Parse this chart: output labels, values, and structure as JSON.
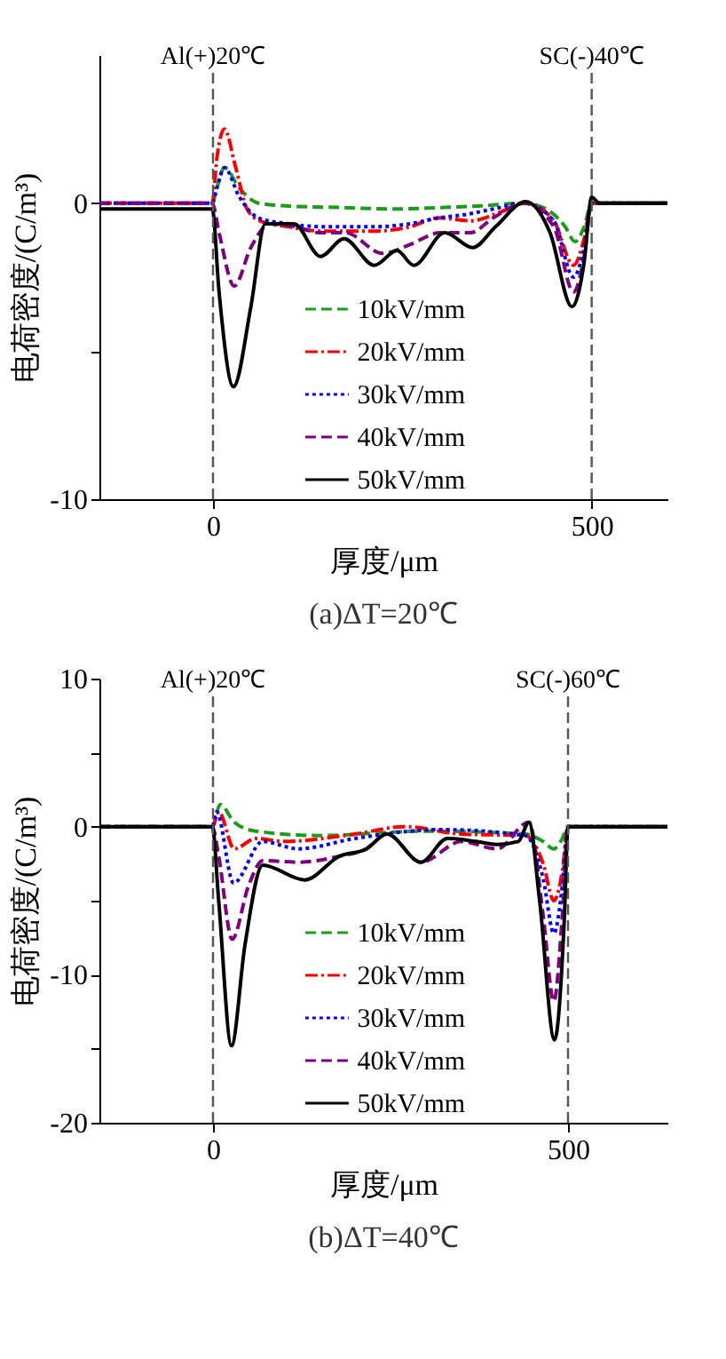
{
  "chart_data": [
    {
      "type": "line",
      "title": "(a)ΔT=20℃",
      "xlabel": "厚度/μm",
      "ylabel": "电荷密度/(C/m³)",
      "xlim": [
        -150,
        600
      ],
      "ylim": [
        -10,
        5
      ],
      "xticks": [
        0,
        500
      ],
      "yticks": [
        0,
        -10,
        {
          "value": -5,
          "label": null
        }
      ],
      "legend": "bottom",
      "grid": false,
      "ref_lines": [
        {
          "axis": "x",
          "value": 0,
          "label": "Al(+)20℃",
          "color": "#555555",
          "line_style": "dashed"
        },
        {
          "axis": "x",
          "value": 500,
          "label": "SC(-)40℃",
          "color": "#555555",
          "line_style": "dashed"
        }
      ],
      "series": [
        {
          "name": "10kV/mm",
          "color": "#1a9e1a",
          "line_style": "dashed",
          "x": [
            -150,
            -1,
            5,
            15,
            35,
            60,
            100,
            170,
            240,
            300,
            350,
            410,
            440,
            465,
            478,
            490,
            500,
            600
          ],
          "values": [
            0,
            0,
            0.5,
            1.2,
            0.5,
            0,
            -0.1,
            -0.15,
            -0.2,
            -0.15,
            -0.1,
            0,
            -0.2,
            -0.8,
            -1.3,
            -0.8,
            0,
            0
          ]
        },
        {
          "name": "20kV/mm",
          "color": "#ff0000",
          "line_style": "dashdot",
          "x": [
            -150,
            -1,
            5,
            15,
            30,
            45,
            62,
            100,
            145,
            210,
            260,
            298,
            340,
            380,
            413,
            450,
            476,
            490,
            500,
            600
          ],
          "values": [
            0,
            0,
            1.5,
            2.5,
            1.2,
            -0.2,
            -0.6,
            -0.8,
            -0.95,
            -0.95,
            -0.8,
            -0.5,
            -0.6,
            -0.3,
            0,
            -0.6,
            -2.1,
            -1.2,
            0,
            0
          ]
        },
        {
          "name": "30kV/mm",
          "color": "#0000ff",
          "line_style": "dotted",
          "x": [
            -150,
            -1,
            5,
            15,
            35,
            60,
            100,
            145,
            210,
            260,
            298,
            330,
            370,
            410,
            450,
            476,
            490,
            500,
            600
          ],
          "values": [
            0,
            0,
            0.5,
            1.2,
            0.2,
            -0.5,
            -0.7,
            -0.8,
            -0.8,
            -0.7,
            -0.5,
            -0.4,
            -0.2,
            0,
            -0.6,
            -2.5,
            -1.5,
            0,
            0
          ]
        },
        {
          "name": "40kV/mm",
          "color": "#800080",
          "line_style": "dashed",
          "x": [
            -150,
            -1,
            8,
            28,
            50,
            75,
            110,
            140,
            175,
            224,
            260,
            300,
            340,
            370,
            410,
            450,
            476,
            490,
            500,
            600
          ],
          "values": [
            0,
            0,
            -1.0,
            -2.8,
            -1.5,
            -0.7,
            -0.8,
            -1.0,
            -1.0,
            -1.7,
            -1.4,
            -1.0,
            -1.0,
            -0.5,
            0,
            -0.8,
            -3.0,
            -1.8,
            0,
            0
          ]
        },
        {
          "name": "50kV/mm",
          "color": "#000000",
          "line_style": "solid",
          "x": [
            -150,
            -1,
            8,
            27,
            50,
            69,
            107,
            142,
            173,
            213,
            243,
            265,
            306,
            343,
            373,
            413,
            445,
            474,
            490,
            500,
            510,
            600
          ],
          "values": [
            -0.2,
            -0.2,
            -3.0,
            -6.2,
            -3.5,
            -0.7,
            -0.7,
            -1.8,
            -1.2,
            -2.1,
            -1.6,
            -2.1,
            -1.0,
            -1.5,
            -0.8,
            0.05,
            -1.0,
            -3.5,
            -2.0,
            0.2,
            0,
            0
          ]
        }
      ]
    },
    {
      "type": "line",
      "title": "(b)ΔT=40℃",
      "xlabel": "厚度/μm",
      "ylabel": "电荷密度/(C/m³)",
      "xlim": [
        -160,
        640
      ],
      "ylim": [
        -20,
        10
      ],
      "xticks": [
        0,
        500
      ],
      "yticks": [
        10,
        0,
        -10,
        -20,
        {
          "value": 5,
          "label": null
        },
        {
          "value": -5,
          "label": null
        },
        {
          "value": -15,
          "label": null
        }
      ],
      "legend": "bottom",
      "grid": false,
      "ref_lines": [
        {
          "axis": "x",
          "value": 0,
          "label": "Al(+)20℃",
          "color": "#555555",
          "line_style": "dashed"
        },
        {
          "axis": "x",
          "value": 500,
          "label": "SC(-)60℃",
          "color": "#555555",
          "line_style": "dashed"
        }
      ],
      "series": [
        {
          "name": "10kV/mm",
          "color": "#1a9e1a",
          "line_style": "dashed",
          "x": [
            -160,
            -1,
            10,
            30,
            60,
            150,
            300,
            440,
            465,
            480,
            492,
            500,
            640
          ],
          "values": [
            0,
            0,
            1.5,
            0.3,
            -0.3,
            -0.6,
            -0.3,
            -0.5,
            -1.0,
            -1.5,
            -0.8,
            0,
            0
          ]
        },
        {
          "name": "20kV/mm",
          "color": "#ff0000",
          "line_style": "dashdot",
          "x": [
            -160,
            -1,
            8,
            30,
            60,
            100,
            200,
            270,
            350,
            440,
            465,
            480,
            492,
            500,
            640
          ],
          "values": [
            0,
            0,
            1.0,
            -1.5,
            -0.8,
            -1.0,
            -0.5,
            0,
            -0.5,
            -0.6,
            -2.5,
            -5.0,
            -3.0,
            0,
            0
          ]
        },
        {
          "name": "30kV/mm",
          "color": "#0000ff",
          "line_style": "dotted",
          "x": [
            -160,
            -1,
            5,
            29,
            70,
            120,
            200,
            320,
            440,
            465,
            480,
            492,
            500,
            640
          ],
          "values": [
            0,
            0,
            1.0,
            -3.8,
            -1.0,
            -1.5,
            -0.8,
            -0.2,
            -0.6,
            -3.5,
            -7.2,
            -4.0,
            0,
            0
          ]
        },
        {
          "name": "40kV/mm",
          "color": "#800080",
          "line_style": "dashed",
          "x": [
            -160,
            -1,
            8,
            27,
            50,
            70,
            120,
            178,
            216,
            245,
            293,
            350,
            400,
            445,
            465,
            480,
            492,
            500,
            640
          ],
          "values": [
            0,
            0,
            -2.0,
            -7.6,
            -4.0,
            -2.3,
            -2.4,
            -2.0,
            -1.5,
            -0.5,
            -2.4,
            -1.0,
            -1.5,
            0.3,
            -6.0,
            -11.8,
            -6.0,
            0,
            0
          ]
        },
        {
          "name": "50kV/mm",
          "color": "#000000",
          "line_style": "solid",
          "x": [
            -160,
            -1,
            8,
            26,
            45,
            70,
            129,
            178,
            216,
            245,
            293,
            330,
            370,
            400,
            430,
            445,
            460,
            481,
            495,
            500,
            640
          ],
          "values": [
            0,
            0,
            -5.0,
            -14.8,
            -8.0,
            -2.6,
            -3.6,
            -2.0,
            -1.5,
            -0.5,
            -2.4,
            -0.8,
            -1.0,
            -1.2,
            -1.0,
            0.3,
            -5.0,
            -14.4,
            -6.0,
            0,
            0
          ]
        }
      ]
    }
  ]
}
